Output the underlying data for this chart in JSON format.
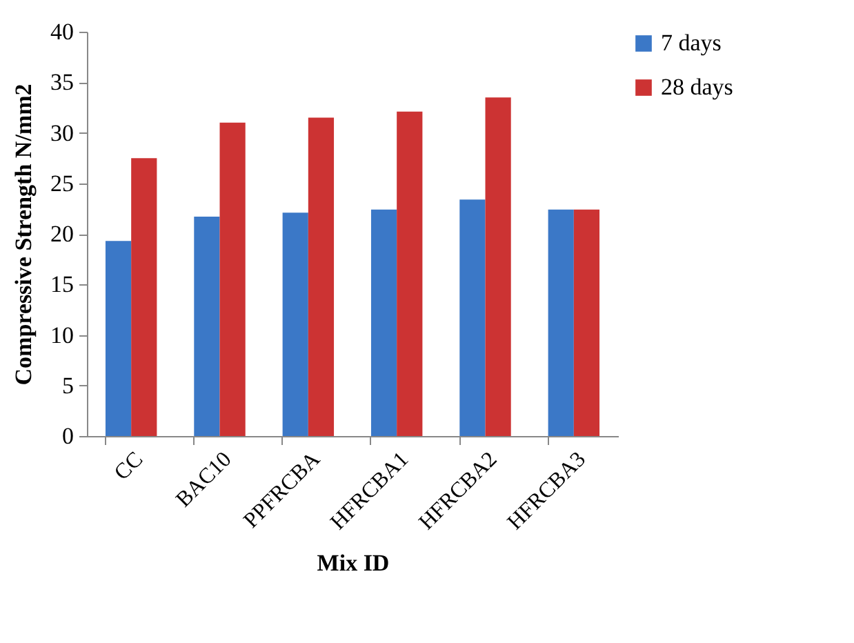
{
  "chart_data": {
    "type": "bar",
    "xlabel": "Mix ID",
    "ylabel": "Compressive Strength N/mm2",
    "categories": [
      "CC",
      "BAC10",
      "PPFRCBA",
      "HFRCBA1",
      "HFRCBA2",
      "HFRCBA3"
    ],
    "series": [
      {
        "name": "7 days",
        "color": "#3b78c7",
        "values": [
          19.3,
          21.7,
          22.1,
          22.4,
          23.4,
          22.4
        ]
      },
      {
        "name": "28 days",
        "color": "#cc3333",
        "values": [
          27.5,
          31.0,
          31.5,
          32.1,
          33.5,
          22.4
        ]
      }
    ],
    "ylim": [
      0,
      40
    ],
    "yticks": [
      0,
      5,
      10,
      15,
      20,
      25,
      30,
      35,
      40
    ],
    "grid": false,
    "legend": "right"
  }
}
